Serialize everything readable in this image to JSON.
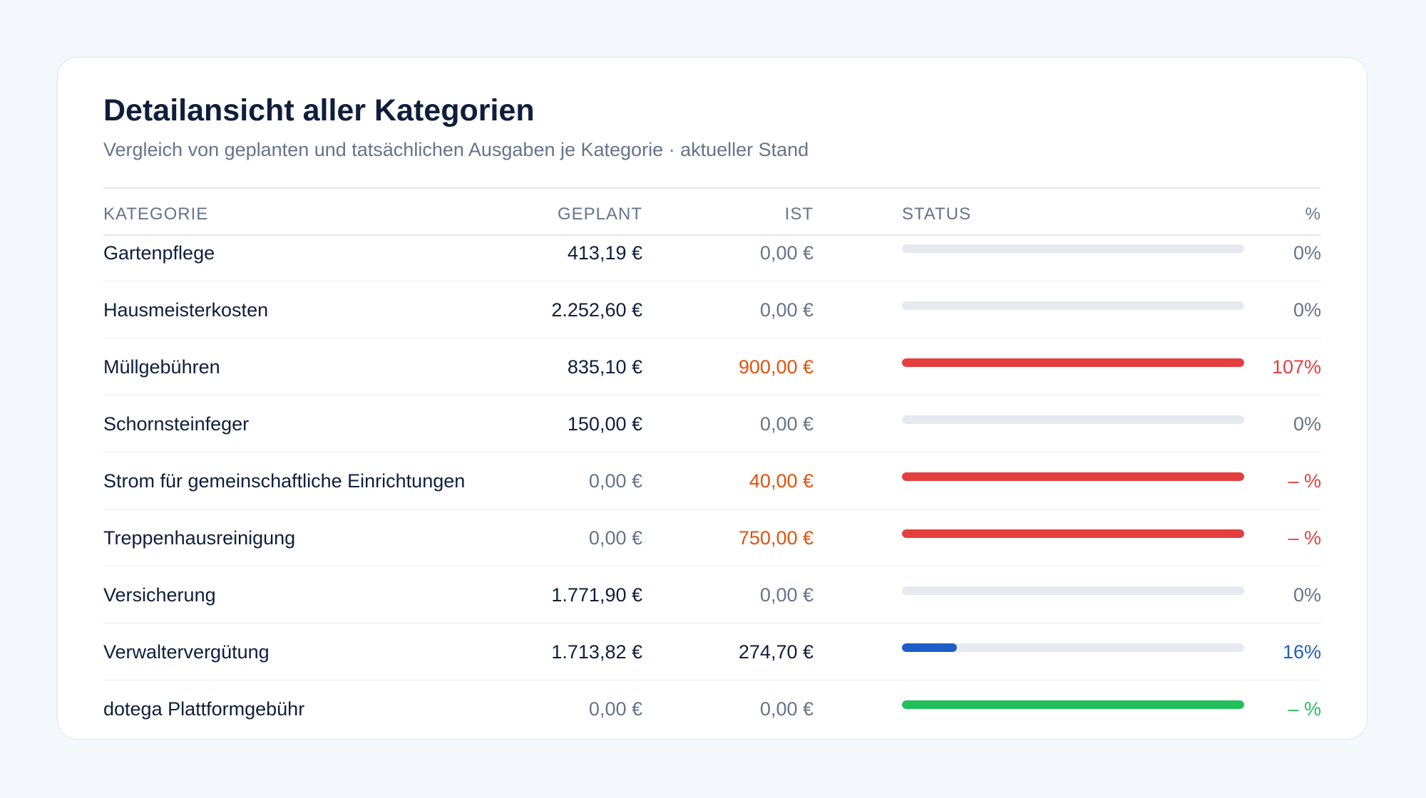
{
  "card": {
    "title": "Detailansicht aller Kategorien",
    "subtitle": "Vergleich von geplanten und tatsächlichen Ausgaben je Kategorie · aktueller Stand"
  },
  "table": {
    "headers": {
      "category": "KATEGORIE",
      "planned": "GEPLANT",
      "actual": "IST",
      "status": "STATUS",
      "percent": "%"
    },
    "rows": [
      {
        "category": "Gartenpflege",
        "planned": "413,19 €",
        "actual": "0,00 €",
        "percent": "0%",
        "progress": 0,
        "plan_tone": "dark",
        "actual_tone": "muted",
        "pct_tone": "muted",
        "bar_color": "#e6eaf0"
      },
      {
        "category": "Hausmeisterkosten",
        "planned": "2.252,60 €",
        "actual": "0,00 €",
        "percent": "0%",
        "progress": 0,
        "plan_tone": "dark",
        "actual_tone": "muted",
        "pct_tone": "muted",
        "bar_color": "#e6eaf0"
      },
      {
        "category": "Müllgebühren",
        "planned": "835,10 €",
        "actual": "900,00 €",
        "percent": "107%",
        "progress": 1,
        "plan_tone": "dark",
        "actual_tone": "orange",
        "pct_tone": "red",
        "bar_color": "#e53e3e"
      },
      {
        "category": "Schornsteinfeger",
        "planned": "150,00 €",
        "actual": "0,00 €",
        "percent": "0%",
        "progress": 0,
        "plan_tone": "dark",
        "actual_tone": "muted",
        "pct_tone": "muted",
        "bar_color": "#e6eaf0"
      },
      {
        "category": "Strom für gemeinschaftliche Einrichtungen",
        "planned": "0,00 €",
        "actual": "40,00 €",
        "percent": "– %",
        "progress": 1,
        "plan_tone": "muted",
        "actual_tone": "orange",
        "pct_tone": "red",
        "bar_color": "#e53e3e"
      },
      {
        "category": "Treppenhausreinigung",
        "planned": "0,00 €",
        "actual": "750,00 €",
        "percent": "– %",
        "progress": 1,
        "plan_tone": "muted",
        "actual_tone": "orange",
        "pct_tone": "red",
        "bar_color": "#e53e3e"
      },
      {
        "category": "Versicherung",
        "planned": "1.771,90 €",
        "actual": "0,00 €",
        "percent": "0%",
        "progress": 0,
        "plan_tone": "dark",
        "actual_tone": "muted",
        "pct_tone": "muted",
        "bar_color": "#e6eaf0"
      },
      {
        "category": "Verwaltervergütung",
        "planned": "1.713,82 €",
        "actual": "274,70 €",
        "percent": "16%",
        "progress": 0.16,
        "plan_tone": "dark",
        "actual_tone": "dark",
        "pct_tone": "blue",
        "bar_color": "#1e5cc8"
      },
      {
        "category": "dotega Plattformgebühr",
        "planned": "0,00 €",
        "actual": "0,00 €",
        "percent": "– %",
        "progress": 1,
        "plan_tone": "muted",
        "actual_tone": "muted",
        "pct_tone": "green",
        "bar_color": "#22c05a"
      }
    ]
  }
}
